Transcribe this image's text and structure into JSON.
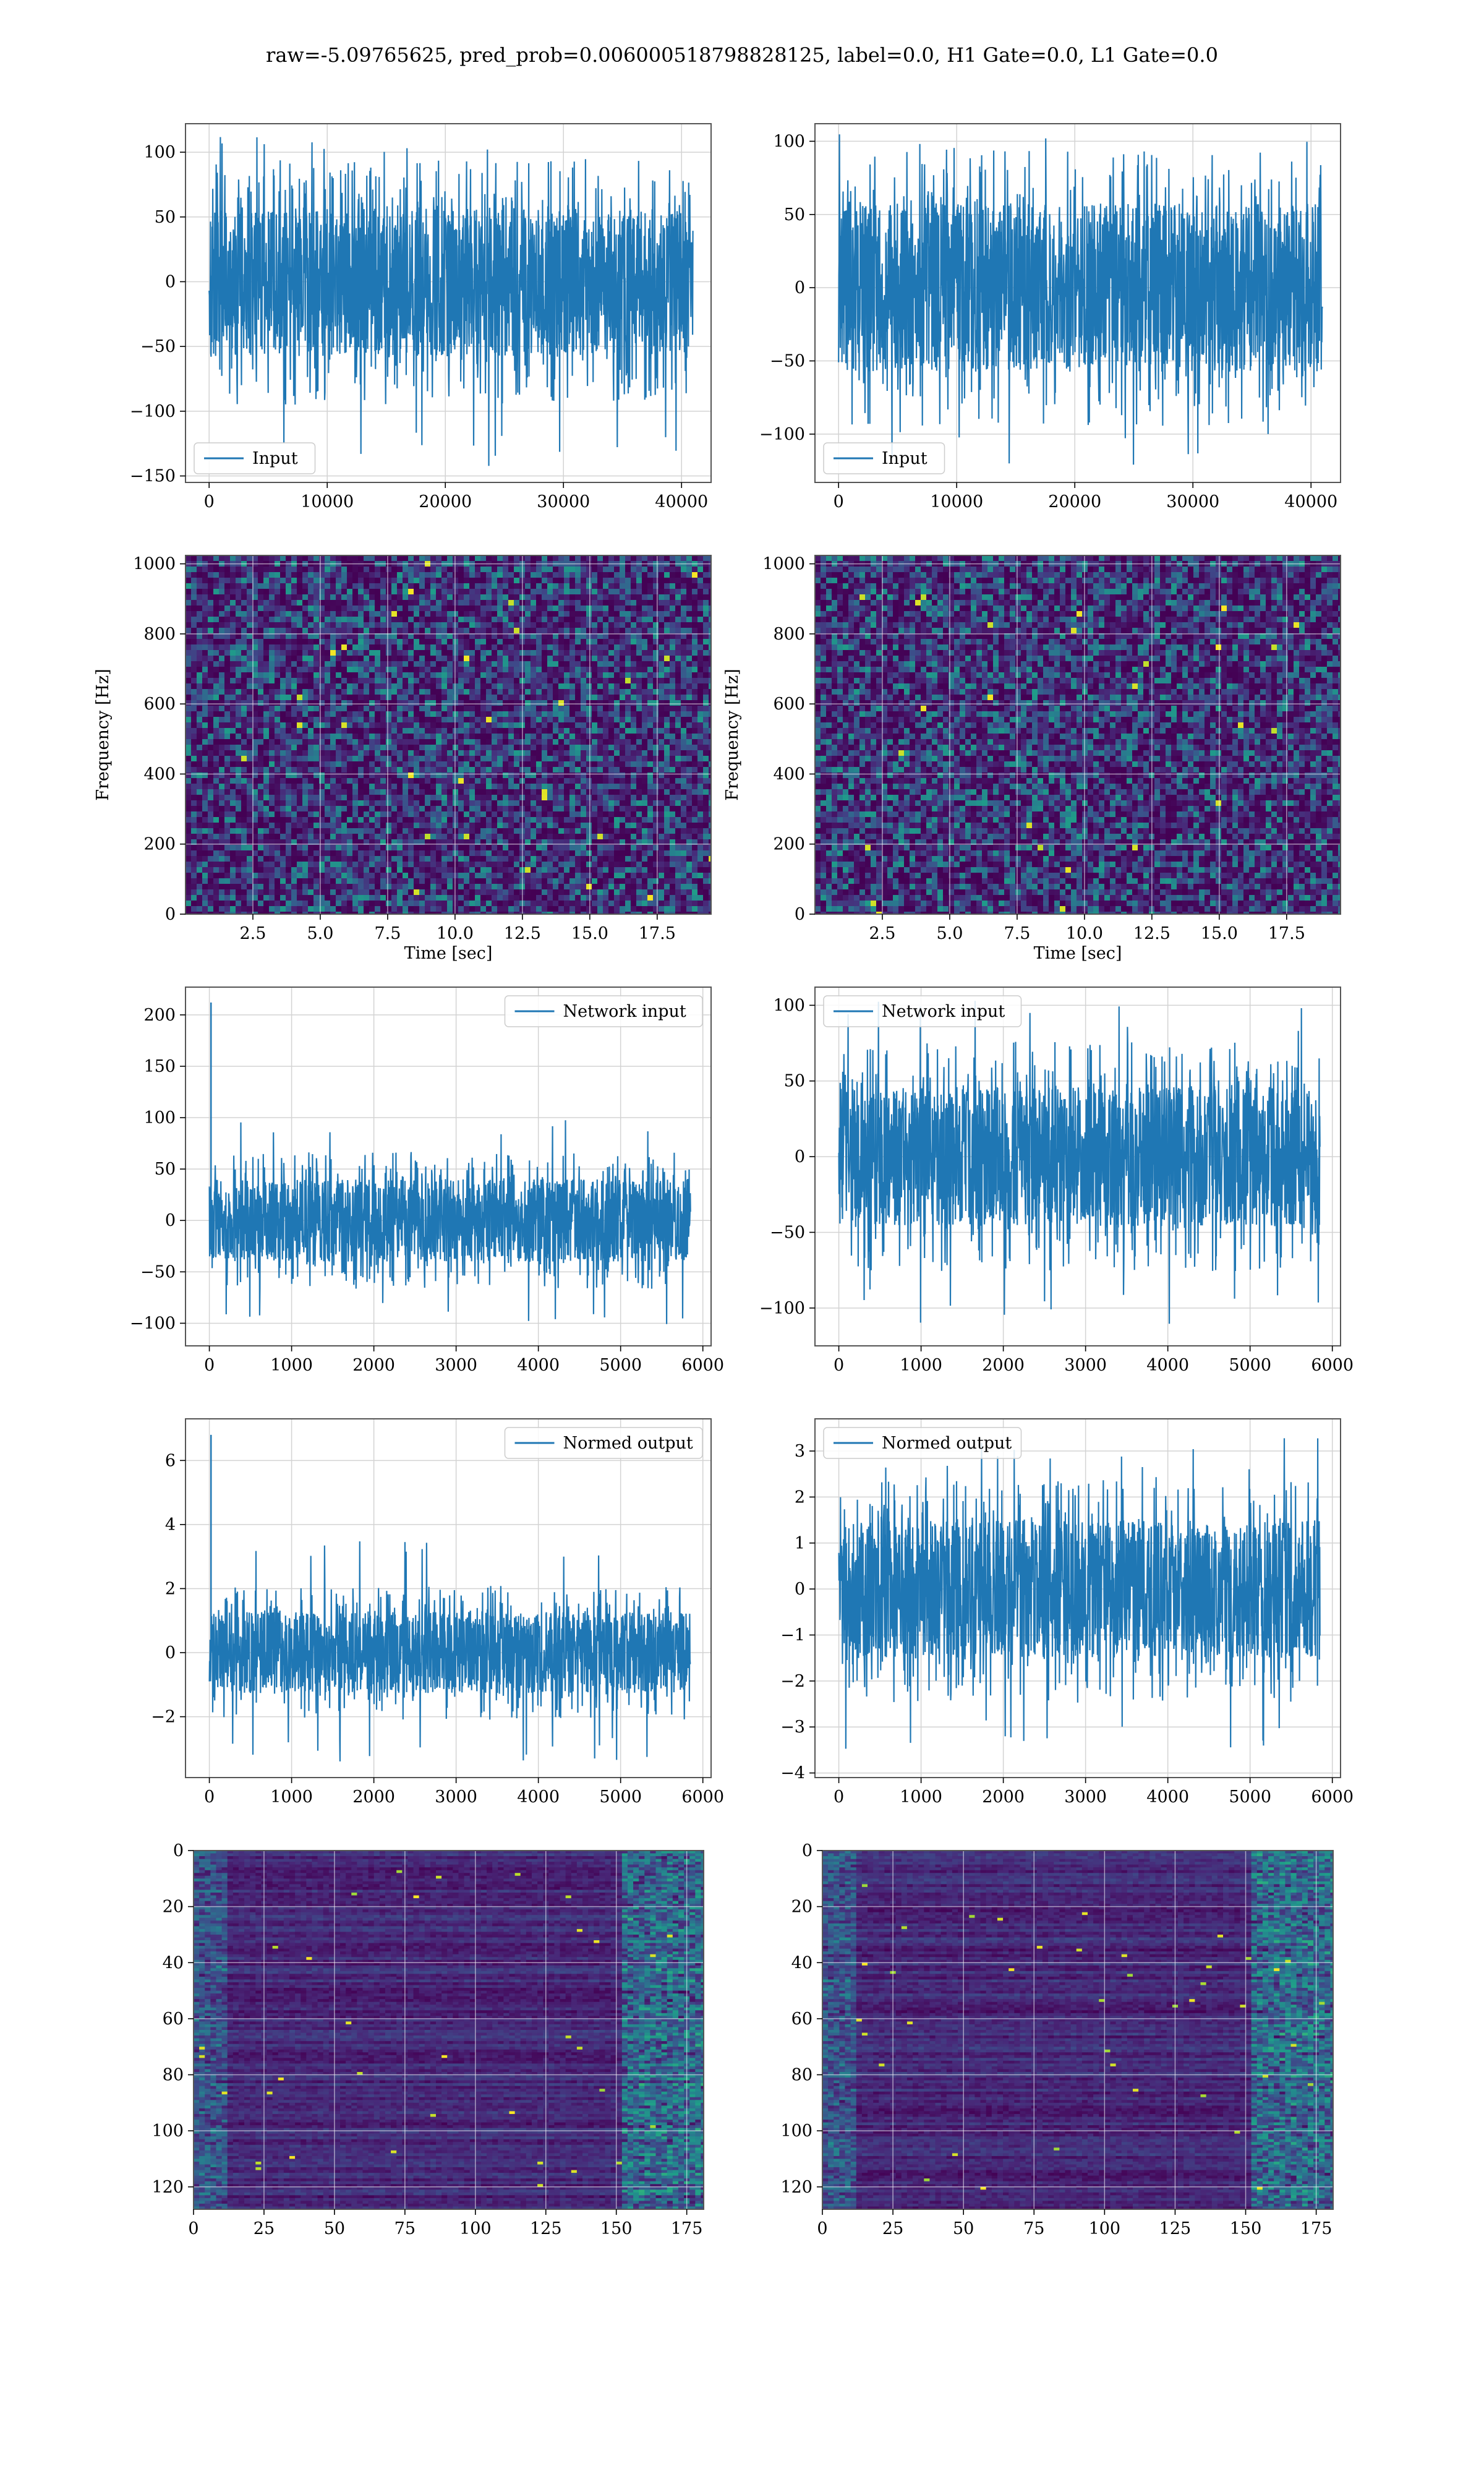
{
  "figure": {
    "suptitle": "raw=-5.09765625, pred_prob=0.006000518798828125, label=0.0, H1 Gate=0.0, L1 Gate=0.0"
  },
  "colors": {
    "line": "#1f77b4",
    "grid": "#d3d3d3",
    "frame": "#555555"
  },
  "chart_data": [
    {
      "id": "r1c1",
      "type": "line",
      "title": "",
      "xlabel": "",
      "ylabel": "",
      "xlim": [
        -2000,
        42500
      ],
      "ylim": [
        -155,
        122
      ],
      "grid": true,
      "xticks": [
        {
          "v": 0,
          "label": "0"
        },
        {
          "v": 10000,
          "label": "10000"
        },
        {
          "v": 20000,
          "label": "20000"
        },
        {
          "v": 30000,
          "label": "30000"
        },
        {
          "v": 40000,
          "label": "40000"
        }
      ],
      "yticks": [
        {
          "v": 100,
          "label": "100"
        },
        {
          "v": 50,
          "label": "50"
        },
        {
          "v": 0,
          "label": "0"
        },
        {
          "v": -50,
          "label": "−50"
        },
        {
          "v": -100,
          "label": "−100"
        },
        {
          "v": -150,
          "label": "−150"
        }
      ],
      "legend": {
        "label": "Input",
        "loc": "lower-left"
      },
      "series": [
        {
          "name": "Input",
          "x_start": 0,
          "x_end": 40960,
          "body_min": -50,
          "body_max": 50,
          "peak_max": 115,
          "peak_min": -143
        }
      ]
    },
    {
      "id": "r1c2",
      "type": "line",
      "title": "",
      "xlabel": "",
      "ylabel": "",
      "xlim": [
        -2000,
        42500
      ],
      "ylim": [
        -133,
        112
      ],
      "grid": true,
      "xticks": [
        {
          "v": 0,
          "label": "0"
        },
        {
          "v": 10000,
          "label": "10000"
        },
        {
          "v": 20000,
          "label": "20000"
        },
        {
          "v": 30000,
          "label": "30000"
        },
        {
          "v": 40000,
          "label": "40000"
        }
      ],
      "yticks": [
        {
          "v": 100,
          "label": "100"
        },
        {
          "v": 50,
          "label": "50"
        },
        {
          "v": 0,
          "label": "0"
        },
        {
          "v": -50,
          "label": "−50"
        },
        {
          "v": -100,
          "label": "−100"
        }
      ],
      "legend": {
        "label": "Input",
        "loc": "lower-left"
      },
      "series": [
        {
          "name": "Input",
          "x_start": 0,
          "x_end": 40960,
          "body_min": -50,
          "body_max": 50,
          "peak_max": 107,
          "peak_min": -125
        }
      ]
    },
    {
      "id": "r2c1",
      "type": "heatmap",
      "title": "",
      "xlabel": "Time [sec]",
      "ylabel": "Frequency [Hz]",
      "xlim": [
        0,
        19.5
      ],
      "ylim": [
        0,
        1024
      ],
      "grid": true,
      "colormap": "viridis",
      "xticks": [
        {
          "v": 2.5,
          "label": "2.5"
        },
        {
          "v": 5,
          "label": "5.0"
        },
        {
          "v": 7.5,
          "label": "7.5"
        },
        {
          "v": 10,
          "label": "10.0"
        },
        {
          "v": 12.5,
          "label": "12.5"
        },
        {
          "v": 15,
          "label": "15.0"
        },
        {
          "v": 17.5,
          "label": "17.5"
        }
      ],
      "yticks": [
        {
          "v": 1000,
          "label": "1000"
        },
        {
          "v": 800,
          "label": "800"
        },
        {
          "v": 600,
          "label": "600"
        },
        {
          "v": 400,
          "label": "400"
        },
        {
          "v": 200,
          "label": "200"
        },
        {
          "v": 0,
          "label": "0"
        }
      ]
    },
    {
      "id": "r2c2",
      "type": "heatmap",
      "title": "",
      "xlabel": "Time [sec]",
      "ylabel": "Frequency [Hz]",
      "xlim": [
        0,
        19.5
      ],
      "ylim": [
        0,
        1024
      ],
      "grid": true,
      "colormap": "viridis",
      "xticks": [
        {
          "v": 2.5,
          "label": "2.5"
        },
        {
          "v": 5,
          "label": "5.0"
        },
        {
          "v": 7.5,
          "label": "7.5"
        },
        {
          "v": 10,
          "label": "10.0"
        },
        {
          "v": 12.5,
          "label": "12.5"
        },
        {
          "v": 15,
          "label": "15.0"
        },
        {
          "v": 17.5,
          "label": "17.5"
        }
      ],
      "yticks": [
        {
          "v": 1000,
          "label": "1000"
        },
        {
          "v": 800,
          "label": "800"
        },
        {
          "v": 600,
          "label": "600"
        },
        {
          "v": 400,
          "label": "400"
        },
        {
          "v": 200,
          "label": "200"
        },
        {
          "v": 0,
          "label": "0"
        }
      ]
    },
    {
      "id": "r3c1",
      "type": "line",
      "title": "",
      "xlabel": "",
      "ylabel": "",
      "xlim": [
        -290,
        6100
      ],
      "ylim": [
        -122,
        227
      ],
      "grid": true,
      "xticks": [
        {
          "v": 0,
          "label": "0"
        },
        {
          "v": 1000,
          "label": "1000"
        },
        {
          "v": 2000,
          "label": "2000"
        },
        {
          "v": 3000,
          "label": "3000"
        },
        {
          "v": 4000,
          "label": "4000"
        },
        {
          "v": 5000,
          "label": "5000"
        },
        {
          "v": 6000,
          "label": "6000"
        }
      ],
      "yticks": [
        {
          "v": 200,
          "label": "200"
        },
        {
          "v": 150,
          "label": "150"
        },
        {
          "v": 100,
          "label": "100"
        },
        {
          "v": 50,
          "label": "50"
        },
        {
          "v": 0,
          "label": "0"
        },
        {
          "v": -50,
          "label": "−50"
        },
        {
          "v": -100,
          "label": "−100"
        }
      ],
      "legend": {
        "label": "Network input",
        "loc": "upper-right"
      },
      "series": [
        {
          "name": "Network input",
          "x_start": 0,
          "x_end": 5850,
          "body_min": -35,
          "body_max": 35,
          "peak_max": 105,
          "peak_min": -103,
          "spike_x": 20,
          "spike_y": 212
        }
      ]
    },
    {
      "id": "r3c2",
      "type": "line",
      "title": "",
      "xlabel": "",
      "ylabel": "",
      "xlim": [
        -290,
        6100
      ],
      "ylim": [
        -125,
        112
      ],
      "grid": true,
      "xticks": [
        {
          "v": 0,
          "label": "0"
        },
        {
          "v": 1000,
          "label": "1000"
        },
        {
          "v": 2000,
          "label": "2000"
        },
        {
          "v": 3000,
          "label": "3000"
        },
        {
          "v": 4000,
          "label": "4000"
        },
        {
          "v": 5000,
          "label": "5000"
        },
        {
          "v": 6000,
          "label": "6000"
        }
      ],
      "yticks": [
        {
          "v": 100,
          "label": "100"
        },
        {
          "v": 50,
          "label": "50"
        },
        {
          "v": 0,
          "label": "0"
        },
        {
          "v": -50,
          "label": "−50"
        },
        {
          "v": -100,
          "label": "−100"
        }
      ],
      "legend": {
        "label": "Network input",
        "loc": "upper-left"
      },
      "series": [
        {
          "name": "Network input",
          "x_start": 0,
          "x_end": 5850,
          "body_min": -40,
          "body_max": 40,
          "peak_max": 103,
          "peak_min": -112
        }
      ]
    },
    {
      "id": "r4c1",
      "type": "line",
      "title": "",
      "xlabel": "",
      "ylabel": "",
      "xlim": [
        -290,
        6100
      ],
      "ylim": [
        -3.9,
        7.3
      ],
      "grid": true,
      "xticks": [
        {
          "v": 0,
          "label": "0"
        },
        {
          "v": 1000,
          "label": "1000"
        },
        {
          "v": 2000,
          "label": "2000"
        },
        {
          "v": 3000,
          "label": "3000"
        },
        {
          "v": 4000,
          "label": "4000"
        },
        {
          "v": 5000,
          "label": "5000"
        },
        {
          "v": 6000,
          "label": "6000"
        }
      ],
      "yticks": [
        {
          "v": 6,
          "label": "6"
        },
        {
          "v": 4,
          "label": "4"
        },
        {
          "v": 2,
          "label": "2"
        },
        {
          "v": 0,
          "label": "0"
        },
        {
          "v": -2,
          "label": "−2"
        }
      ],
      "legend": {
        "label": "Normed output",
        "loc": "upper-right"
      },
      "series": [
        {
          "name": "Normed output",
          "x_start": 0,
          "x_end": 5850,
          "body_min": -1.1,
          "body_max": 1.1,
          "peak_max": 3.5,
          "peak_min": -3.4,
          "spike_x": 20,
          "spike_y": 6.8
        }
      ]
    },
    {
      "id": "r4c2",
      "type": "line",
      "title": "",
      "xlabel": "",
      "ylabel": "",
      "xlim": [
        -290,
        6100
      ],
      "ylim": [
        -4.1,
        3.7
      ],
      "grid": true,
      "xticks": [
        {
          "v": 0,
          "label": "0"
        },
        {
          "v": 1000,
          "label": "1000"
        },
        {
          "v": 2000,
          "label": "2000"
        },
        {
          "v": 3000,
          "label": "3000"
        },
        {
          "v": 4000,
          "label": "4000"
        },
        {
          "v": 5000,
          "label": "5000"
        },
        {
          "v": 6000,
          "label": "6000"
        }
      ],
      "yticks": [
        {
          "v": 3,
          "label": "3"
        },
        {
          "v": 2,
          "label": "2"
        },
        {
          "v": 1,
          "label": "1"
        },
        {
          "v": 0,
          "label": "0"
        },
        {
          "v": -1,
          "label": "−1"
        },
        {
          "v": -2,
          "label": "−2"
        },
        {
          "v": -3,
          "label": "−3"
        },
        {
          "v": -4,
          "label": "−4"
        }
      ],
      "legend": {
        "label": "Normed output",
        "loc": "upper-left"
      },
      "series": [
        {
          "name": "Normed output",
          "x_start": 0,
          "x_end": 5850,
          "body_min": -1.3,
          "body_max": 1.3,
          "peak_max": 3.3,
          "peak_min": -3.5
        }
      ]
    },
    {
      "id": "r5c1",
      "type": "heatmap",
      "title": "",
      "xlabel": "",
      "ylabel": "",
      "xlim": [
        0,
        181
      ],
      "ylim": [
        128,
        0
      ],
      "grid": true,
      "colormap": "viridis",
      "xticks": [
        {
          "v": 0,
          "label": "0"
        },
        {
          "v": 25,
          "label": "25"
        },
        {
          "v": 50,
          "label": "50"
        },
        {
          "v": 75,
          "label": "75"
        },
        {
          "v": 100,
          "label": "100"
        },
        {
          "v": 125,
          "label": "125"
        },
        {
          "v": 150,
          "label": "150"
        },
        {
          "v": 175,
          "label": "175"
        }
      ],
      "yticks": [
        {
          "v": 0,
          "label": "0"
        },
        {
          "v": 20,
          "label": "20"
        },
        {
          "v": 40,
          "label": "40"
        },
        {
          "v": 60,
          "label": "60"
        },
        {
          "v": 80,
          "label": "80"
        },
        {
          "v": 100,
          "label": "100"
        },
        {
          "v": 120,
          "label": "120"
        }
      ]
    },
    {
      "id": "r5c2",
      "type": "heatmap",
      "title": "",
      "xlabel": "",
      "ylabel": "",
      "xlim": [
        0,
        181
      ],
      "ylim": [
        128,
        0
      ],
      "grid": true,
      "colormap": "viridis",
      "xticks": [
        {
          "v": 0,
          "label": "0"
        },
        {
          "v": 25,
          "label": "25"
        },
        {
          "v": 50,
          "label": "50"
        },
        {
          "v": 75,
          "label": "75"
        },
        {
          "v": 100,
          "label": "100"
        },
        {
          "v": 125,
          "label": "125"
        },
        {
          "v": 150,
          "label": "150"
        },
        {
          "v": 175,
          "label": "175"
        }
      ],
      "yticks": [
        {
          "v": 0,
          "label": "0"
        },
        {
          "v": 20,
          "label": "20"
        },
        {
          "v": 40,
          "label": "40"
        },
        {
          "v": 60,
          "label": "60"
        },
        {
          "v": 80,
          "label": "80"
        },
        {
          "v": 100,
          "label": "100"
        },
        {
          "v": 120,
          "label": "120"
        }
      ]
    }
  ]
}
